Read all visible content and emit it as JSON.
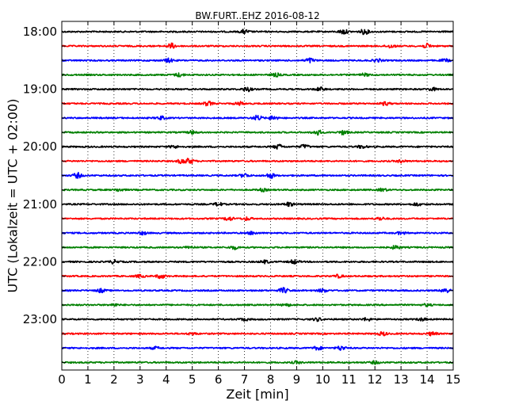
{
  "chart_data": {
    "type": "line",
    "title": "BW.FURT..EHZ 2016-08-12",
    "xlabel": "Zeit  [min]",
    "ylabel": "UTC (Lokalzeit = UTC + 02:00)",
    "xlim": [
      0,
      15
    ],
    "x_ticks": [
      "0",
      "1",
      "2",
      "3",
      "4",
      "5",
      "6",
      "7",
      "8",
      "9",
      "10",
      "11",
      "12",
      "13",
      "14",
      "15"
    ],
    "y_ticks": [
      "18:00",
      "19:00",
      "20:00",
      "21:00",
      "22:00",
      "23:00"
    ],
    "grid": "vertical dotted",
    "series": [
      {
        "start": "18:00",
        "color": "#000000",
        "bursts": [
          {
            "t": 7.0,
            "amp": 2.4
          },
          {
            "t": 10.8,
            "amp": 2.8
          },
          {
            "t": 11.6,
            "amp": 3.0
          }
        ]
      },
      {
        "start": "18:15",
        "color": "#ff0000",
        "bursts": [
          {
            "t": 4.2,
            "amp": 3.0
          },
          {
            "t": 12.6,
            "amp": 2.0
          },
          {
            "t": 14.0,
            "amp": 2.6
          }
        ]
      },
      {
        "start": "18:30",
        "color": "#0000ff",
        "bursts": [
          {
            "t": 4.1,
            "amp": 2.2
          },
          {
            "t": 9.5,
            "amp": 2.8
          },
          {
            "t": 12.1,
            "amp": 1.8
          },
          {
            "t": 14.7,
            "amp": 1.6
          }
        ]
      },
      {
        "start": "18:45",
        "color": "#008000",
        "bursts": [
          {
            "t": 4.5,
            "amp": 2.2
          },
          {
            "t": 8.2,
            "amp": 2.0
          },
          {
            "t": 11.6,
            "amp": 1.6
          }
        ]
      },
      {
        "start": "19:00",
        "color": "#000000",
        "bursts": [
          {
            "t": 7.1,
            "amp": 2.6
          },
          {
            "t": 9.9,
            "amp": 2.2
          },
          {
            "t": 14.2,
            "amp": 1.8
          }
        ]
      },
      {
        "start": "19:15",
        "color": "#ff0000",
        "bursts": [
          {
            "t": 5.6,
            "amp": 2.6
          },
          {
            "t": 6.8,
            "amp": 2.0
          },
          {
            "t": 12.4,
            "amp": 2.0
          }
        ]
      },
      {
        "start": "19:30",
        "color": "#0000ff",
        "bursts": [
          {
            "t": 3.8,
            "amp": 2.0
          },
          {
            "t": 7.5,
            "amp": 3.0
          },
          {
            "t": 8.1,
            "amp": 2.6
          }
        ]
      },
      {
        "start": "19:45",
        "color": "#008000",
        "bursts": [
          {
            "t": 5.0,
            "amp": 1.8
          },
          {
            "t": 9.8,
            "amp": 3.0
          },
          {
            "t": 10.8,
            "amp": 2.6
          }
        ]
      },
      {
        "start": "20:00",
        "color": "#000000",
        "bursts": [
          {
            "t": 4.3,
            "amp": 1.6
          },
          {
            "t": 8.3,
            "amp": 2.8
          },
          {
            "t": 9.3,
            "amp": 2.4
          },
          {
            "t": 11.5,
            "amp": 1.8
          }
        ]
      },
      {
        "start": "20:15",
        "color": "#ff0000",
        "bursts": [
          {
            "t": 4.6,
            "amp": 2.6
          },
          {
            "t": 4.9,
            "amp": 3.0
          },
          {
            "t": 13.0,
            "amp": 1.6
          }
        ]
      },
      {
        "start": "20:30",
        "color": "#0000ff",
        "bursts": [
          {
            "t": 0.6,
            "amp": 3.0
          },
          {
            "t": 7.0,
            "amp": 2.4
          },
          {
            "t": 8.0,
            "amp": 3.0
          }
        ]
      },
      {
        "start": "20:45",
        "color": "#008000",
        "bursts": [
          {
            "t": 2.2,
            "amp": 1.6
          },
          {
            "t": 7.7,
            "amp": 1.6
          },
          {
            "t": 12.3,
            "amp": 1.8
          }
        ]
      },
      {
        "start": "21:00",
        "color": "#000000",
        "bursts": [
          {
            "t": 6.0,
            "amp": 2.0
          },
          {
            "t": 8.7,
            "amp": 2.4
          },
          {
            "t": 13.6,
            "amp": 1.8
          }
        ]
      },
      {
        "start": "21:15",
        "color": "#ff0000",
        "bursts": [
          {
            "t": 6.4,
            "amp": 2.4
          },
          {
            "t": 7.1,
            "amp": 1.8
          },
          {
            "t": 12.2,
            "amp": 1.8
          }
        ]
      },
      {
        "start": "21:30",
        "color": "#0000ff",
        "bursts": [
          {
            "t": 3.1,
            "amp": 1.8
          },
          {
            "t": 7.3,
            "amp": 1.8
          },
          {
            "t": 13.0,
            "amp": 1.6
          }
        ]
      },
      {
        "start": "21:45",
        "color": "#008000",
        "bursts": [
          {
            "t": 4.9,
            "amp": 1.6
          },
          {
            "t": 6.6,
            "amp": 2.0
          },
          {
            "t": 12.8,
            "amp": 2.2
          }
        ]
      },
      {
        "start": "22:00",
        "color": "#000000",
        "bursts": [
          {
            "t": 2.0,
            "amp": 2.0
          },
          {
            "t": 7.8,
            "amp": 1.8
          },
          {
            "t": 8.9,
            "amp": 2.4
          }
        ]
      },
      {
        "start": "22:15",
        "color": "#ff0000",
        "bursts": [
          {
            "t": 3.0,
            "amp": 1.6
          },
          {
            "t": 3.8,
            "amp": 2.6
          },
          {
            "t": 10.6,
            "amp": 1.8
          }
        ]
      },
      {
        "start": "22:30",
        "color": "#0000ff",
        "bursts": [
          {
            "t": 1.5,
            "amp": 2.2
          },
          {
            "t": 8.5,
            "amp": 3.2
          },
          {
            "t": 10.0,
            "amp": 2.0
          },
          {
            "t": 14.7,
            "amp": 3.0
          }
        ]
      },
      {
        "start": "22:45",
        "color": "#008000",
        "bursts": [
          {
            "t": 2.0,
            "amp": 1.4
          },
          {
            "t": 8.6,
            "amp": 1.6
          },
          {
            "t": 14.0,
            "amp": 1.4
          }
        ]
      },
      {
        "start": "23:00",
        "color": "#000000",
        "bursts": [
          {
            "t": 7.0,
            "amp": 1.6
          },
          {
            "t": 9.8,
            "amp": 1.8
          },
          {
            "t": 11.7,
            "amp": 1.8
          },
          {
            "t": 13.8,
            "amp": 1.6
          }
        ]
      },
      {
        "start": "23:15",
        "color": "#ff0000",
        "bursts": [
          {
            "t": 5.0,
            "amp": 1.4
          },
          {
            "t": 12.3,
            "amp": 2.2
          },
          {
            "t": 14.2,
            "amp": 2.2
          }
        ]
      },
      {
        "start": "23:30",
        "color": "#0000ff",
        "bursts": [
          {
            "t": 9.8,
            "amp": 2.2
          },
          {
            "t": 10.7,
            "amp": 2.6
          },
          {
            "t": 3.6,
            "amp": 1.4
          }
        ]
      },
      {
        "start": "23:45",
        "color": "#008000",
        "bursts": [
          {
            "t": 9.0,
            "amp": 1.4
          },
          {
            "t": 12.0,
            "amp": 1.6
          }
        ]
      }
    ]
  }
}
